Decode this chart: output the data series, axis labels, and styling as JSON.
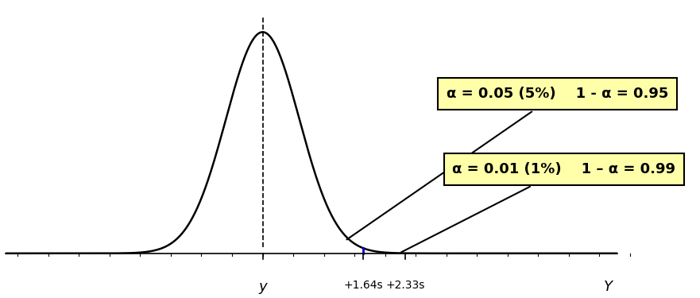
{
  "mean": 0.0,
  "std": 0.6,
  "x_min": -4.2,
  "x_max": 5.8,
  "threshold_blue": 1.645,
  "threshold_red": 2.33,
  "curve_color": "#000000",
  "curve_lw": 1.8,
  "dashed_color": "#000000",
  "blue_color": "#0000cc",
  "red_color": "#cc0000",
  "box1_text": "α = 0.05 (5%)    1 - α = 0.95",
  "box2_text": "α = 0.01 (1%)    1 – α = 0.99",
  "box_facecolor": "#ffffaa",
  "box_edgecolor": "#000000",
  "xlabel_y": "y",
  "xlabel_Y": "Y",
  "axis_label_fontsize": 13,
  "annotation_fontsize": 13,
  "background_color": "#ffffff",
  "tick_label_blue": "+1.64s",
  "tick_label_red": "+2.33s"
}
